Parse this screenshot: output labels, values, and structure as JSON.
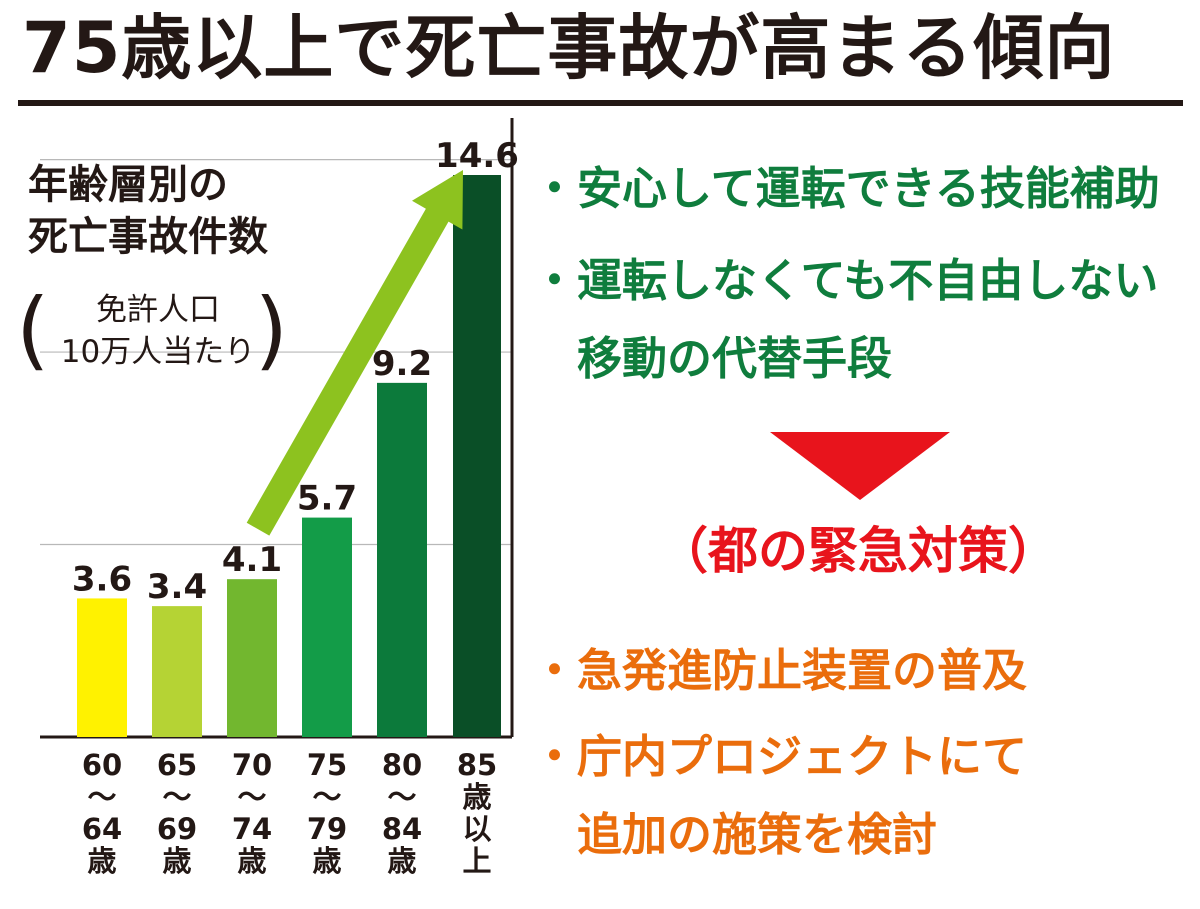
{
  "title": "75歳以上で死亡事故が高まる傾向",
  "chart_data": {
    "type": "bar",
    "title_lines": [
      "年齢層別の",
      "死亡事故件数"
    ],
    "unit_lines": [
      "免許人口",
      "10万人当たり"
    ],
    "categories": [
      [
        "60",
        "～",
        "64",
        "歳"
      ],
      [
        "65",
        "～",
        "69",
        "歳"
      ],
      [
        "70",
        "～",
        "74",
        "歳"
      ],
      [
        "75",
        "～",
        "79",
        "歳"
      ],
      [
        "80",
        "～",
        "84",
        "歳"
      ],
      [
        "85",
        "歳",
        "以",
        "上"
      ]
    ],
    "values": [
      3.6,
      3.4,
      4.1,
      5.7,
      9.2,
      14.6
    ],
    "value_labels": [
      "3.6",
      "3.4",
      "4.1",
      "5.7",
      "9.2",
      "14.6"
    ],
    "bar_colors": [
      "#fff200",
      "#b5d334",
      "#72b72f",
      "#139c48",
      "#0c7a3b",
      "#0a4f27"
    ],
    "ylim": [
      0,
      16
    ],
    "grid": true,
    "trend_arrow_color": "#8dc21f"
  },
  "points_current": [
    "・安心して運転できる技能補助",
    "・運転しなくても不自由しない",
    "　移動の代替手段"
  ],
  "emergency_label": "（都の緊急対策）",
  "points_new": [
    "・急発進防止装置の普及",
    "・庁内プロジェクトにて",
    "　追加の施策を検討"
  ],
  "colors": {
    "green_text": "#0f7d3d",
    "orange_text": "#ea6d0c",
    "red": "#e8141c"
  }
}
